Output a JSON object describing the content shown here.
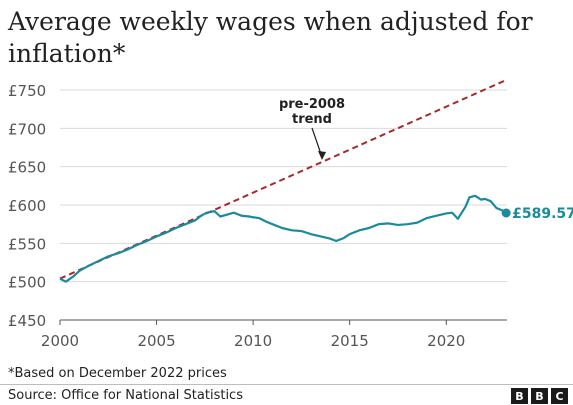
{
  "title": "Average weekly wages when adjusted for inflation*",
  "footnote": "*Based on December 2022 prices",
  "source": "Source: Office for National Statistics",
  "logo": [
    "B",
    "B",
    "C"
  ],
  "colors": {
    "actual": "#1b8a9c",
    "trend": "#a52a2a",
    "grid": "#d9d9d9",
    "text": "#222222"
  },
  "chart_data": {
    "type": "line",
    "title": "Average weekly wages when adjusted for inflation*",
    "xlabel": "",
    "ylabel": "",
    "xlim": [
      2000,
      2023.3
    ],
    "ylim": [
      450,
      750
    ],
    "x_ticks": [
      2000,
      2005,
      2010,
      2015,
      2020
    ],
    "x_tick_labels": [
      "2000",
      "2005",
      "2010",
      "2015",
      "2020"
    ],
    "y_ticks": [
      450,
      500,
      550,
      600,
      650,
      700,
      750
    ],
    "y_tick_labels": [
      "£450",
      "£500",
      "£550",
      "£600",
      "£650",
      "£700",
      "£750"
    ],
    "grid": "horizontal",
    "series": [
      {
        "name": "",
        "style": "solid",
        "x": [
          2000,
          2000.3,
          2000.7,
          2001,
          2001.5,
          2002,
          2002.5,
          2003,
          2003.5,
          2004,
          2004.5,
          2005,
          2005.5,
          2006,
          2006.5,
          2007,
          2007.3,
          2007.6,
          2008,
          2008.3,
          2008.6,
          2009,
          2009.4,
          2009.8,
          2010,
          2010.3,
          2010.7,
          2011,
          2011.5,
          2012,
          2012.5,
          2013,
          2013.5,
          2014,
          2014.3,
          2014.7,
          2015,
          2015.5,
          2016,
          2016.5,
          2017,
          2017.5,
          2018,
          2018.5,
          2019,
          2019.5,
          2020,
          2020.3,
          2020.6,
          2021,
          2021.2,
          2021.5,
          2021.8,
          2022,
          2022.3,
          2022.6,
          2022.9,
          2023.1
        ],
        "values": [
          504,
          500,
          507,
          514,
          521,
          527,
          533,
          537,
          542,
          548,
          553,
          559,
          564,
          570,
          575,
          580,
          586,
          590,
          592,
          585,
          587,
          590,
          586,
          585,
          584,
          583,
          578,
          575,
          570,
          567,
          566,
          562,
          559,
          556,
          553,
          557,
          562,
          567,
          570,
          575,
          576,
          574,
          575,
          577,
          583,
          586,
          589,
          590,
          582,
          598,
          610,
          612,
          607,
          608,
          605,
          596,
          593,
          589.57
        ]
      },
      {
        "name": "pre-2008 trend",
        "style": "dashed",
        "x": [
          2000,
          2023.1
        ],
        "values": [
          504,
          763
        ]
      }
    ],
    "annotations": [
      {
        "text": "pre-2008 trend",
        "lines": [
          "pre-2008",
          "trend"
        ]
      },
      {
        "text": "£589.57"
      }
    ]
  }
}
